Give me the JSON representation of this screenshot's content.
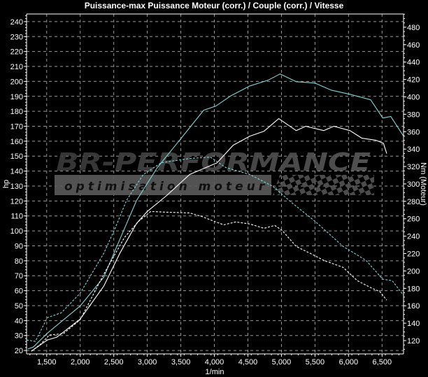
{
  "chart_data": {
    "type": "line",
    "title": "Puissance-max Puissance Moteur (corr.) / Couple (corr.) / Vitesse",
    "xlabel": "1/min",
    "ylabel": "hp",
    "y2label": "Nm (Moteur)",
    "xlim": [
      1200,
      6820
    ],
    "ylim": [
      17.7,
      245.1
    ],
    "y2lim": [
      104.7,
      495.2
    ],
    "xticks": [
      1500,
      2000,
      2500,
      3000,
      3500,
      4000,
      4500,
      5000,
      5500,
      6000,
      6500
    ],
    "xtick_labels": [
      "1,500",
      "2,000",
      "2,500",
      "3,000",
      "3,500",
      "4,000",
      "4,500",
      "5,000",
      "5,500",
      "6,000",
      "6,500"
    ],
    "yticks": [
      20,
      30,
      40,
      50,
      60,
      70,
      80,
      90,
      100,
      110,
      120,
      130,
      140,
      150,
      160,
      170,
      180,
      190,
      200,
      210,
      220,
      230,
      240
    ],
    "y2ticks": [
      120,
      140,
      160,
      180,
      200,
      220,
      240,
      260,
      280,
      300,
      320,
      340,
      360,
      380,
      400,
      420,
      440,
      460,
      480
    ],
    "grid": true,
    "background": "#000000",
    "series": [
      {
        "axis": "left",
        "style": "solid",
        "color": "#7fd6d6",
        "x": [
          1220,
          1300,
          1510,
          2000,
          2350,
          2590,
          2840,
          3150,
          3490,
          3840,
          4020,
          4250,
          4530,
          4800,
          4980,
          5220,
          5500,
          5740,
          6020,
          6330,
          6510,
          6630,
          6820
        ],
        "y": [
          21,
          22.3,
          31.6,
          49.8,
          69,
          94.3,
          120.4,
          142.4,
          161.1,
          180.7,
          183.5,
          190.5,
          197,
          200.8,
          205,
          199.8,
          198.9,
          194.2,
          191.4,
          187.7,
          175.5,
          176.5,
          163.4
        ]
      },
      {
        "axis": "left",
        "style": "solid",
        "color": "#ffffff",
        "x": [
          1270,
          1510,
          1650,
          2000,
          2350,
          2590,
          2840,
          3000,
          3290,
          3630,
          4040,
          4280,
          4530,
          4740,
          4960,
          5220,
          5360,
          5630,
          5780,
          6020,
          6200,
          6410,
          6520,
          6570
        ],
        "y": [
          19.5,
          27,
          28.9,
          41,
          63,
          85,
          105,
          113,
          123.7,
          137.7,
          145.6,
          157.3,
          163.4,
          166.7,
          175.1,
          167.1,
          170,
          167.1,
          170,
          167.1,
          162,
          160.6,
          158.7,
          151.7
        ]
      },
      {
        "axis": "right",
        "style": "dashed",
        "color": "#7fd6d6",
        "x": [
          1200,
          1330,
          1510,
          1720,
          2000,
          2350,
          2520,
          2690,
          2940,
          3210,
          3630,
          3940,
          4170,
          4530,
          4870,
          5150,
          5500,
          5920,
          6260,
          6510,
          6650,
          6820
        ],
        "y": [
          120.7,
          119.1,
          146.4,
          152,
          174.5,
          220.2,
          249,
          281.1,
          310.8,
          324.4,
          329.2,
          330.8,
          318.8,
          310.8,
          297.2,
          278.7,
          257.1,
          228.2,
          212.2,
          190.5,
          188.9,
          172
        ]
      },
      {
        "axis": "right",
        "style": "dashed",
        "color": "#ffffff",
        "x": [
          1270,
          1410,
          1540,
          1750,
          2000,
          2350,
          2660,
          2870,
          3050,
          3290,
          3630,
          3810,
          4020,
          4140,
          4320,
          4530,
          4740,
          4900,
          5010,
          5220,
          5430,
          5630,
          5920,
          6130,
          6330,
          6470,
          6570
        ],
        "y": [
          107.9,
          115.9,
          126.4,
          128,
          144,
          196.1,
          238.6,
          257,
          268.3,
          267.5,
          266.7,
          262.7,
          256.3,
          253,
          256.3,
          253.9,
          249,
          252.3,
          246.6,
          228.2,
          220.2,
          212.2,
          204.1,
          188.9,
          180.9,
          176.1,
          166.4
        ]
      }
    ]
  },
  "watermark": {
    "brand": "BR-Performance",
    "tagline": "optimisation moteur"
  }
}
